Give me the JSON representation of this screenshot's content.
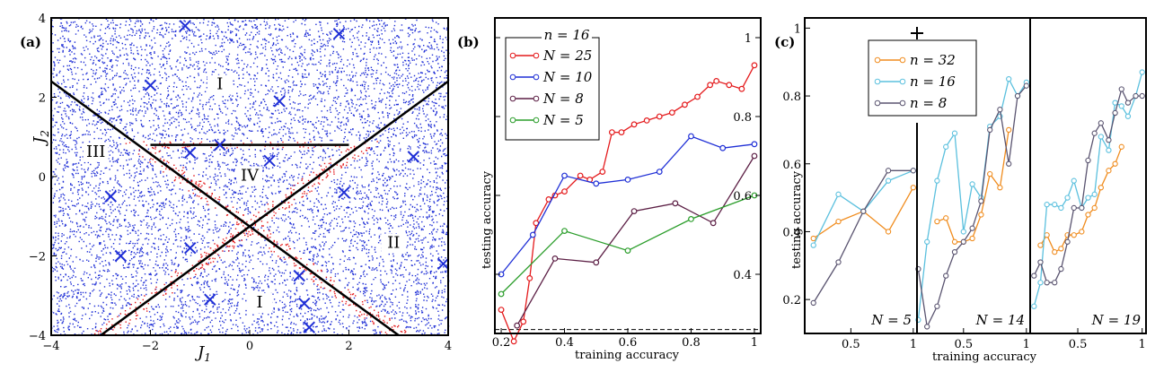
{
  "chart_data": [
    {
      "panel": "(a)",
      "type": "scatter",
      "xlabel": "J1",
      "ylabel": "J2",
      "xlim": [
        -4,
        4
      ],
      "ylim": [
        -4,
        4
      ],
      "xticks": [
        -4,
        -2,
        0,
        2,
        4
      ],
      "yticks": [
        -4,
        -2,
        0,
        2,
        4
      ],
      "tick_labels_x": [
        "−4",
        "−2",
        "0",
        "2",
        "4"
      ],
      "tick_labels_y": [
        "−4",
        "−2",
        "0",
        "2",
        "4"
      ],
      "regions": [
        {
          "label": "I",
          "x": -0.6,
          "y": 2.2
        },
        {
          "label": "II",
          "x": 2.9,
          "y": -1.8
        },
        {
          "label": "III",
          "x": -3.1,
          "y": 0.5
        },
        {
          "label": "IV",
          "x": 0.0,
          "y": -0.1
        },
        {
          "label": "I",
          "x": 0.2,
          "y": -3.3
        }
      ],
      "boundaries": [
        {
          "from": [
            -4,
            2.4
          ],
          "to": [
            3,
            -4
          ]
        },
        {
          "from": [
            -3,
            -4
          ],
          "to": [
            4,
            2.4
          ]
        },
        {
          "from": [
            -2,
            0.8
          ],
          "to": [
            2,
            0.8
          ]
        }
      ],
      "cross_markers": [
        [
          -1.3,
          3.8
        ],
        [
          1.8,
          3.6
        ],
        [
          -2.0,
          2.3
        ],
        [
          0.6,
          1.9
        ],
        [
          -1.2,
          0.6
        ],
        [
          0.4,
          0.4
        ],
        [
          -0.6,
          0.8
        ],
        [
          3.3,
          0.5
        ],
        [
          1.9,
          -0.4
        ],
        [
          -2.8,
          -0.5
        ],
        [
          -1.2,
          -1.8
        ],
        [
          -2.6,
          -2.0
        ],
        [
          3.9,
          -2.2
        ],
        [
          1.0,
          -2.5
        ],
        [
          -0.8,
          -3.1
        ],
        [
          1.1,
          -3.2
        ],
        [
          1.2,
          -3.8
        ]
      ],
      "point_colors": {
        "default": "#1f2fd6",
        "boundary": "#e41a1c"
      }
    },
    {
      "panel": "(b)",
      "type": "line",
      "xlabel": "training accuracy",
      "ylabel": "testing accuracy",
      "xlim": [
        0.2,
        1.0
      ],
      "ylim": [
        0.25,
        1.05
      ],
      "xticks": [
        0.2,
        0.4,
        0.6,
        0.8,
        1.0
      ],
      "yticks": [
        0.4,
        0.6,
        0.8,
        1.0
      ],
      "tick_labels_x": [
        "0.2",
        "0.4",
        "0.6",
        "0.8",
        "1"
      ],
      "tick_labels_y": [
        "0.4",
        "0.6",
        "0.8",
        "1"
      ],
      "legend_title": "n = 16",
      "legend_position": "top-left",
      "baseline": 0.26,
      "series": [
        {
          "name": "N = 25",
          "color": "#e41a1c",
          "x": [
            0.2,
            0.24,
            0.27,
            0.29,
            0.31,
            0.35,
            0.37,
            0.4,
            0.45,
            0.48,
            0.52,
            0.55,
            0.58,
            0.62,
            0.66,
            0.7,
            0.74,
            0.78,
            0.82,
            0.86,
            0.88,
            0.92,
            0.96,
            1.0
          ],
          "y": [
            0.31,
            0.23,
            0.28,
            0.39,
            0.53,
            0.59,
            0.6,
            0.61,
            0.65,
            0.64,
            0.66,
            0.76,
            0.76,
            0.78,
            0.79,
            0.8,
            0.81,
            0.83,
            0.85,
            0.88,
            0.89,
            0.88,
            0.87,
            0.93
          ]
        },
        {
          "name": "N = 10",
          "color": "#1f2fd6",
          "x": [
            0.2,
            0.3,
            0.4,
            0.5,
            0.6,
            0.7,
            0.8,
            0.9,
            1.0
          ],
          "y": [
            0.4,
            0.5,
            0.65,
            0.63,
            0.64,
            0.66,
            0.75,
            0.72,
            0.73
          ]
        },
        {
          "name": "N = 8",
          "color": "#5c1f45",
          "x": [
            0.25,
            0.37,
            0.5,
            0.62,
            0.75,
            0.87,
            1.0
          ],
          "y": [
            0.27,
            0.44,
            0.43,
            0.56,
            0.58,
            0.53,
            0.7
          ]
        },
        {
          "name": "N = 5",
          "color": "#2a9d2a",
          "x": [
            0.2,
            0.4,
            0.6,
            0.8,
            1.0
          ],
          "y": [
            0.35,
            0.51,
            0.46,
            0.54,
            0.6
          ]
        }
      ]
    },
    {
      "panel": "(c)",
      "type": "line",
      "xlabel": "training accuracy",
      "ylabel": "testing accuracy",
      "ylim": [
        0.1,
        1.03
      ],
      "yticks": [
        0.2,
        0.4,
        0.6,
        0.8,
        1.0
      ],
      "tick_labels_y": [
        "0.2",
        "0.4",
        "0.6",
        "0.8",
        "1"
      ],
      "tick_labels_x": [
        "0.5",
        "1"
      ],
      "legend_position": "top-center",
      "legend": [
        {
          "name": "n = 32",
          "color": "#f08c1e"
        },
        {
          "name": "n = 16",
          "color": "#5bc0de"
        },
        {
          "name": "n = 8",
          "color": "#5a5470"
        }
      ],
      "subpanels": [
        {
          "label": "N = 5",
          "series": [
            {
              "name": "n = 32",
              "x": [
                0.2,
                0.4,
                0.6,
                0.8,
                1.0
              ],
              "y": [
                0.38,
                0.43,
                0.46,
                0.4,
                0.53
              ]
            },
            {
              "name": "n = 16",
              "x": [
                0.2,
                0.4,
                0.6,
                0.8,
                1.0
              ],
              "y": [
                0.36,
                0.51,
                0.46,
                0.55,
                0.58
              ]
            },
            {
              "name": "n = 8",
              "x": [
                0.2,
                0.4,
                0.6,
                0.8,
                1.0
              ],
              "y": [
                0.19,
                0.31,
                0.46,
                0.58,
                0.58
              ]
            }
          ]
        },
        {
          "label": "N = 14",
          "series": [
            {
              "name": "n = 32",
              "x": [
                0.29,
                0.36,
                0.43,
                0.5,
                0.57,
                0.64,
                0.71,
                0.79,
                0.86
              ],
              "y": [
                0.43,
                0.44,
                0.37,
                0.37,
                0.38,
                0.45,
                0.57,
                0.53,
                0.7
              ]
            },
            {
              "name": "n = 16",
              "x": [
                0.14,
                0.21,
                0.29,
                0.36,
                0.43,
                0.5,
                0.57,
                0.64,
                0.71,
                0.79,
                0.86,
                0.93,
                1.0
              ],
              "y": [
                0.14,
                0.37,
                0.55,
                0.65,
                0.69,
                0.4,
                0.54,
                0.5,
                0.71,
                0.74,
                0.85,
                0.8,
                0.84
              ]
            },
            {
              "name": "n = 8",
              "x": [
                0.14,
                0.21,
                0.29,
                0.36,
                0.43,
                0.5,
                0.57,
                0.64,
                0.71,
                0.79,
                0.86,
                0.93,
                1.0
              ],
              "y": [
                0.29,
                0.12,
                0.18,
                0.27,
                0.34,
                0.37,
                0.41,
                0.49,
                0.7,
                0.76,
                0.6,
                0.8,
                0.83
              ]
            }
          ]
        },
        {
          "label": "N = 19",
          "series": [
            {
              "name": "n = 32",
              "x": [
                0.21,
                0.26,
                0.32,
                0.37,
                0.42,
                0.47,
                0.53,
                0.58,
                0.63,
                0.68,
                0.74,
                0.79,
                0.84
              ],
              "y": [
                0.36,
                0.39,
                0.34,
                0.35,
                0.39,
                0.39,
                0.4,
                0.45,
                0.47,
                0.53,
                0.58,
                0.6,
                0.65
              ]
            },
            {
              "name": "n = 16",
              "x": [
                0.16,
                0.21,
                0.26,
                0.32,
                0.37,
                0.42,
                0.47,
                0.53,
                0.58,
                0.63,
                0.68,
                0.74,
                0.79,
                0.84,
                0.89,
                0.95,
                1.0
              ],
              "y": [
                0.18,
                0.25,
                0.48,
                0.48,
                0.47,
                0.5,
                0.55,
                0.47,
                0.5,
                0.51,
                0.68,
                0.64,
                0.78,
                0.77,
                0.74,
                0.8,
                0.87
              ]
            },
            {
              "name": "n = 8",
              "x": [
                0.16,
                0.21,
                0.26,
                0.32,
                0.37,
                0.42,
                0.47,
                0.53,
                0.58,
                0.63,
                0.68,
                0.74,
                0.79,
                0.84,
                0.89,
                0.95,
                1.0
              ],
              "y": [
                0.27,
                0.31,
                0.25,
                0.25,
                0.29,
                0.37,
                0.47,
                0.47,
                0.61,
                0.69,
                0.72,
                0.67,
                0.75,
                0.82,
                0.78,
                0.8,
                0.8
              ]
            }
          ]
        }
      ]
    }
  ]
}
